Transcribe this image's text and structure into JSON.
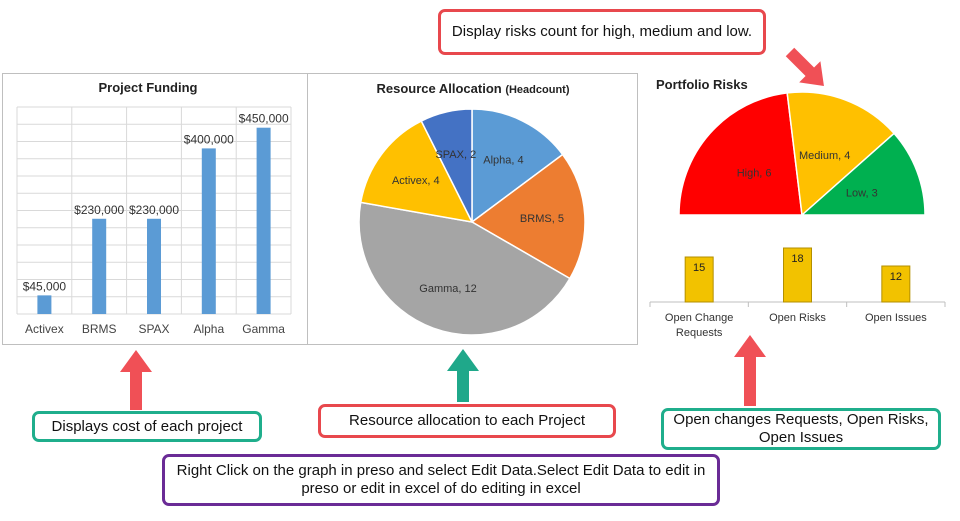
{
  "callouts": {
    "risks_note": "Display risks count for high, medium and low.",
    "funding_note": "Displays cost of each project",
    "resource_note": "Resource allocation to each Project",
    "open_items_note": "Open changes Requests, Open Risks, Open Issues",
    "edit_note": "Right Click on the graph in preso and select Edit Data.Select Edit Data to edit in preso or edit in excel of do editing in excel"
  },
  "colors": {
    "bar_blue": "#5b9bd5",
    "red_arrow": "#f05056",
    "green_arrow": "#1fa88a",
    "risk_high": "#ff0000",
    "risk_medium": "#ffc000",
    "risk_low": "#00b050",
    "open_bar": "#f2c200"
  },
  "chart_data": [
    {
      "type": "bar",
      "title": "Project Funding",
      "categories": [
        "Activex",
        "BRMS",
        "SPAX",
        "Alpha",
        "Gamma"
      ],
      "values": [
        45000,
        230000,
        230000,
        400000,
        450000
      ],
      "data_labels": [
        "$45,000",
        "$230,000",
        "$230,000",
        "$400,000",
        "$450,000"
      ],
      "ylim": [
        0,
        500000
      ],
      "grid": true
    },
    {
      "type": "pie",
      "title": "Resource Allocation",
      "title_suffix": "(Headcount)",
      "slices": [
        {
          "label": "Alpha, 4",
          "value": 4,
          "color": "#5b9bd5"
        },
        {
          "label": "BRMS, 5",
          "value": 5,
          "color": "#ed7d31"
        },
        {
          "label": "Gamma, 12",
          "value": 12,
          "color": "#a5a5a5"
        },
        {
          "label": "Activex, 4",
          "value": 4,
          "color": "#ffc000"
        },
        {
          "label": "SPAX, 2",
          "value": 2,
          "color": "#4472c4"
        }
      ]
    },
    {
      "type": "pie",
      "title": "Portfolio Risks",
      "subtype": "half-donut gauge",
      "slices": [
        {
          "label": "High, 6",
          "value": 6,
          "color": "#ff0000"
        },
        {
          "label": "Medium, 4",
          "value": 4,
          "color": "#ffc000"
        },
        {
          "label": "Low, 3",
          "value": 3,
          "color": "#00b050"
        }
      ]
    },
    {
      "type": "bar",
      "categories": [
        "Open Change Requests",
        "Open Risks",
        "Open Issues"
      ],
      "category_lines": [
        [
          "Open Change",
          "Requests"
        ],
        [
          "Open Risks"
        ],
        [
          "Open Issues"
        ]
      ],
      "values": [
        15,
        18,
        12
      ],
      "data_labels": [
        "15",
        "18",
        "12"
      ],
      "ylim": [
        0,
        20
      ]
    }
  ]
}
